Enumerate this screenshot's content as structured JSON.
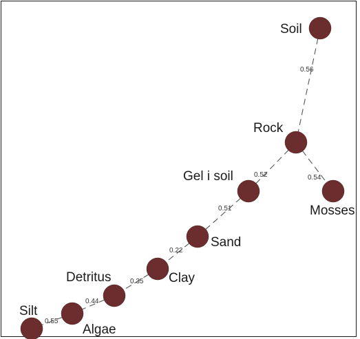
{
  "colors": {
    "node_fill": "#6b2d2d",
    "edge_stroke": "#555555",
    "text": "#1a1a1a"
  },
  "nodes": [
    {
      "id": "soil",
      "label": "Soil"
    },
    {
      "id": "rock",
      "label": "Rock"
    },
    {
      "id": "mosses",
      "label": "Mosses"
    },
    {
      "id": "gel_i_soil",
      "label": "Gel i soil"
    },
    {
      "id": "sand",
      "label": "Sand"
    },
    {
      "id": "clay",
      "label": "Clay"
    },
    {
      "id": "detritus",
      "label": "Detritus"
    },
    {
      "id": "algae",
      "label": "Algae"
    },
    {
      "id": "silt",
      "label": "Silt"
    }
  ],
  "edges": [
    {
      "source": "soil",
      "target": "rock",
      "weight": "0.56"
    },
    {
      "source": "rock",
      "target": "mosses",
      "weight": "0.54"
    },
    {
      "source": "rock",
      "target": "gel_i_soil",
      "weight": "0.52"
    },
    {
      "source": "gel_i_soil",
      "target": "sand",
      "weight": "0.51"
    },
    {
      "source": "sand",
      "target": "clay",
      "weight": "0.22"
    },
    {
      "source": "clay",
      "target": "detritus",
      "weight": "0.35"
    },
    {
      "source": "detritus",
      "target": "algae",
      "weight": "0.44"
    },
    {
      "source": "algae",
      "target": "silt",
      "weight": "0.55"
    }
  ]
}
